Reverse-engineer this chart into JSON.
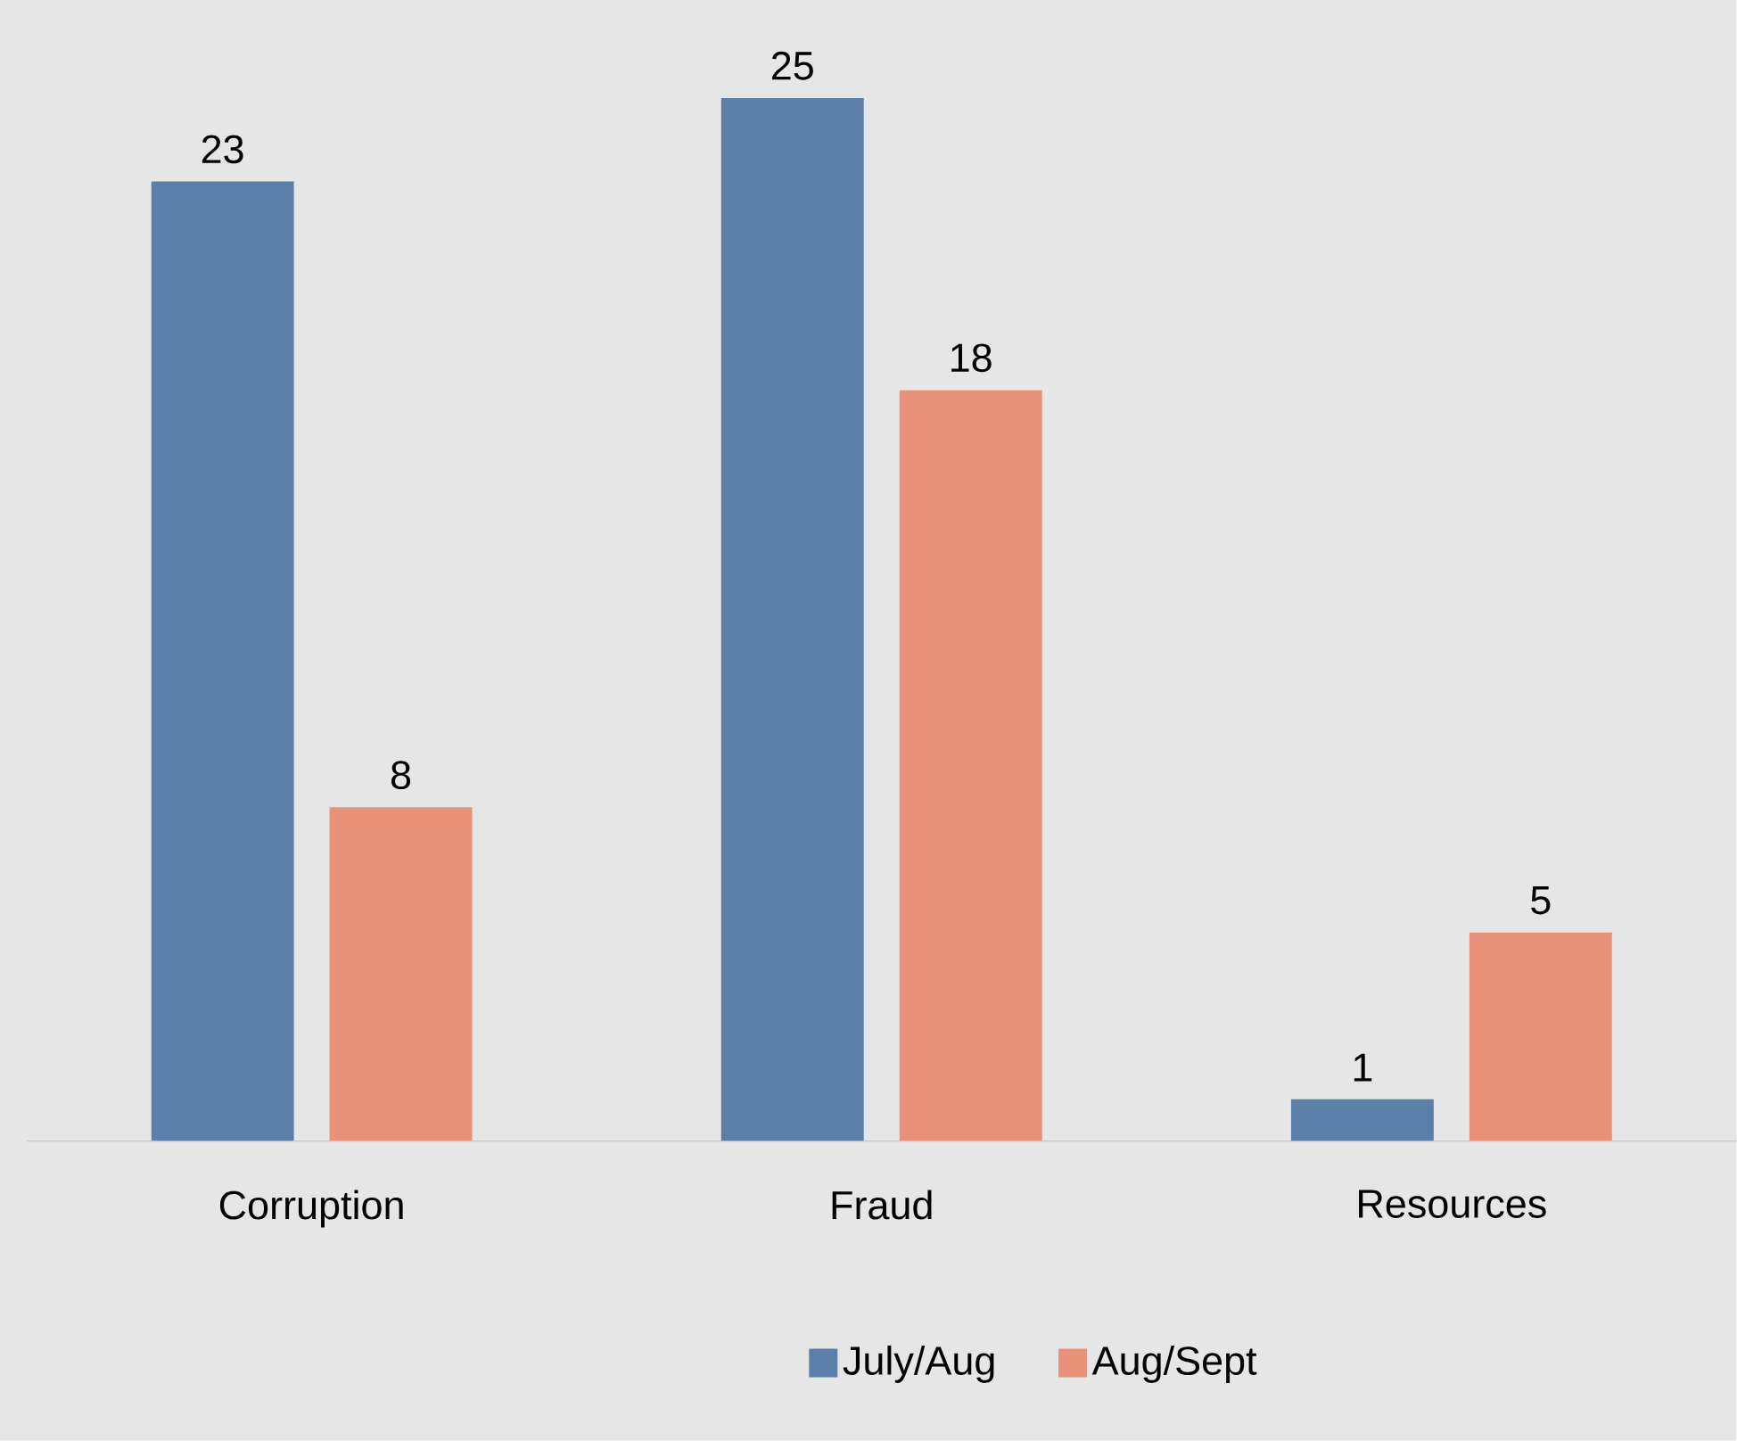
{
  "chart_data": {
    "type": "bar",
    "categories": [
      "Corruption",
      "Fraud",
      "Resources"
    ],
    "series": [
      {
        "name": "July/Aug",
        "color": "#5b7fa8",
        "values": [
          23,
          25,
          1
        ]
      },
      {
        "name": "Aug/Sept",
        "color": "#e8927a",
        "values": [
          8,
          18,
          5
        ]
      }
    ],
    "tick_labels": "x",
    "data_labels": true,
    "legend": "bottom"
  }
}
